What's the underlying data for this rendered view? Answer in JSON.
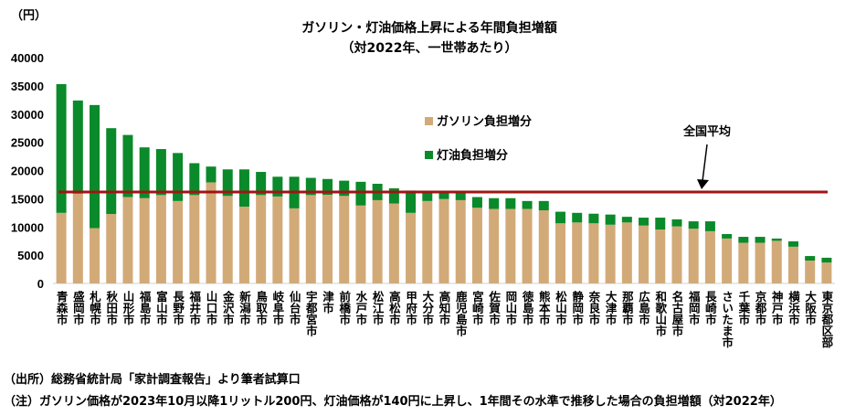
{
  "chart_data": {
    "type": "bar",
    "stacked": true,
    "title": "ガソリン・灯油価格上昇による年間負担増額",
    "subtitle": "（対2022年、一世帯あたり）",
    "ylabel": "（円）",
    "ylim": [
      0,
      40000
    ],
    "yticks": [
      0,
      5000,
      10000,
      15000,
      20000,
      25000,
      30000,
      35000,
      40000
    ],
    "grid": false,
    "legend_position": "center-right",
    "categories": [
      "青森市",
      "盛岡市",
      "札幌市",
      "秋田市",
      "山形市",
      "福島市",
      "富山市",
      "長野市",
      "福井市",
      "山口市",
      "金沢市",
      "新潟市",
      "鳥取市",
      "岐阜市",
      "仙台市",
      "宇都宮市",
      "津市",
      "前橋市",
      "水戸市",
      "松江市",
      "高松市",
      "甲府市",
      "大分市",
      "高知市",
      "鹿児島市",
      "宮崎市",
      "佐賀市",
      "岡山市",
      "徳島市",
      "熊本市",
      "松山市",
      "静岡市",
      "奈良市",
      "大津市",
      "那覇市",
      "広島市",
      "和歌山市",
      "名古屋市",
      "福岡市",
      "長崎市",
      "さいたま市",
      "千葉市",
      "京都市",
      "神戸市",
      "横浜市",
      "大阪市",
      "東京都区部"
    ],
    "series": [
      {
        "name": "ガソリン負担増分",
        "color": "#d2aa78",
        "values": [
          12500,
          15900,
          9800,
          12300,
          15300,
          15100,
          15650,
          14600,
          15650,
          17900,
          15500,
          13600,
          15650,
          15400,
          13300,
          15650,
          15700,
          15500,
          13800,
          14750,
          14150,
          12500,
          14600,
          14950,
          14750,
          13400,
          13200,
          13200,
          13200,
          12950,
          10650,
          10800,
          10650,
          10400,
          10800,
          10250,
          9550,
          10100,
          9700,
          9250,
          7950,
          7200,
          7200,
          7550,
          6500,
          4050,
          3700
        ]
      },
      {
        "name": "灯油負担増分",
        "color": "#0a8a2a",
        "values": [
          22800,
          16500,
          21800,
          15200,
          11000,
          9000,
          8150,
          8500,
          5650,
          2800,
          4700,
          6600,
          4100,
          3500,
          5600,
          3050,
          2800,
          2700,
          4200,
          2900,
          2700,
          3950,
          1500,
          1050,
          1250,
          1900,
          1900,
          1900,
          1400,
          1650,
          2050,
          1700,
          1700,
          1800,
          1000,
          1400,
          2100,
          1250,
          1300,
          1750,
          800,
          1050,
          1050,
          400,
          950,
          800,
          850
        ]
      }
    ],
    "reference_line": {
      "label": "全国平均",
      "value": 16200,
      "color": "#a01414"
    }
  },
  "notes": {
    "source": "（出所）総務省統計局「家計調査報告」より筆者試算口",
    "note": "（注）ガソリン価格が2023年10月以降1リットル200円、灯油価格が140円に上昇し、1年間その水準で推移した場合の負担増額（対2022年）"
  }
}
